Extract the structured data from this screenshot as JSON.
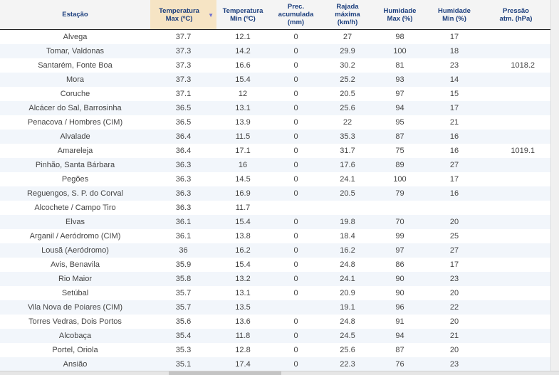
{
  "table": {
    "headers": [
      {
        "line1": "Estação",
        "line2": "",
        "line3": ""
      },
      {
        "line1": "Temperatura",
        "line2": "Max (ºC)",
        "line3": ""
      },
      {
        "line1": "Temperatura",
        "line2": "Min (ºC)",
        "line3": ""
      },
      {
        "line1": "Prec.",
        "line2": "acumulada",
        "line3": "(mm)"
      },
      {
        "line1": "Rajada",
        "line2": "máxima",
        "line3": "(km/h)"
      },
      {
        "line1": "Humidade",
        "line2": "Max (%)",
        "line3": ""
      },
      {
        "line1": "Humidade",
        "line2": "Min (%)",
        "line3": ""
      },
      {
        "line1": "Pressão",
        "line2": "atm. (hPa)",
        "line3": ""
      }
    ],
    "sort_icon": "sort-descending-icon",
    "sorted_column_color": "#f6e4c4",
    "header_text_color": "#1a3d7c",
    "rows": [
      [
        "Alvega",
        "37.7",
        "12.1",
        "0",
        "27",
        "98",
        "17",
        ""
      ],
      [
        "Tomar, Valdonas",
        "37.3",
        "14.2",
        "0",
        "29.9",
        "100",
        "18",
        ""
      ],
      [
        "Santarém, Fonte Boa",
        "37.3",
        "16.6",
        "0",
        "30.2",
        "81",
        "23",
        "1018.2"
      ],
      [
        "Mora",
        "37.3",
        "15.4",
        "0",
        "25.2",
        "93",
        "14",
        ""
      ],
      [
        "Coruche",
        "37.1",
        "12",
        "0",
        "20.5",
        "97",
        "15",
        ""
      ],
      [
        "Alcácer do Sal, Barrosinha",
        "36.5",
        "13.1",
        "0",
        "25.6",
        "94",
        "17",
        ""
      ],
      [
        "Penacova / Hombres (CIM)",
        "36.5",
        "13.9",
        "0",
        "22",
        "95",
        "21",
        ""
      ],
      [
        "Alvalade",
        "36.4",
        "11.5",
        "0",
        "35.3",
        "87",
        "16",
        ""
      ],
      [
        "Amareleja",
        "36.4",
        "17.1",
        "0",
        "31.7",
        "75",
        "16",
        "1019.1"
      ],
      [
        "Pinhão, Santa Bárbara",
        "36.3",
        "16",
        "0",
        "17.6",
        "89",
        "27",
        ""
      ],
      [
        "Pegões",
        "36.3",
        "14.5",
        "0",
        "24.1",
        "100",
        "17",
        ""
      ],
      [
        "Reguengos, S. P. do Corval",
        "36.3",
        "16.9",
        "0",
        "20.5",
        "79",
        "16",
        ""
      ],
      [
        "Alcochete / Campo Tiro",
        "36.3",
        "11.7",
        "",
        "",
        "",
        "",
        ""
      ],
      [
        "Elvas",
        "36.1",
        "15.4",
        "0",
        "19.8",
        "70",
        "20",
        ""
      ],
      [
        "Arganil / Aeródromo (CIM)",
        "36.1",
        "13.8",
        "0",
        "18.4",
        "99",
        "25",
        ""
      ],
      [
        "Lousã (Aeródromo)",
        "36",
        "16.2",
        "0",
        "16.2",
        "97",
        "27",
        ""
      ],
      [
        "Avis, Benavila",
        "35.9",
        "15.4",
        "0",
        "24.8",
        "86",
        "17",
        ""
      ],
      [
        "Rio Maior",
        "35.8",
        "13.2",
        "0",
        "24.1",
        "90",
        "23",
        ""
      ],
      [
        "Setúbal",
        "35.7",
        "13.1",
        "0",
        "20.9",
        "90",
        "20",
        ""
      ],
      [
        "Vila Nova de Poiares (CIM)",
        "35.7",
        "13.5",
        "",
        "19.1",
        "96",
        "22",
        ""
      ],
      [
        "Torres Vedras, Dois Portos",
        "35.6",
        "13.6",
        "0",
        "24.8",
        "91",
        "20",
        ""
      ],
      [
        "Alcobaça",
        "35.4",
        "11.8",
        "0",
        "24.5",
        "94",
        "21",
        ""
      ],
      [
        "Portel, Oriola",
        "35.3",
        "12.8",
        "0",
        "25.6",
        "87",
        "20",
        ""
      ],
      [
        "Ansião",
        "35.1",
        "17.4",
        "0",
        "22.3",
        "76",
        "23",
        ""
      ]
    ]
  }
}
